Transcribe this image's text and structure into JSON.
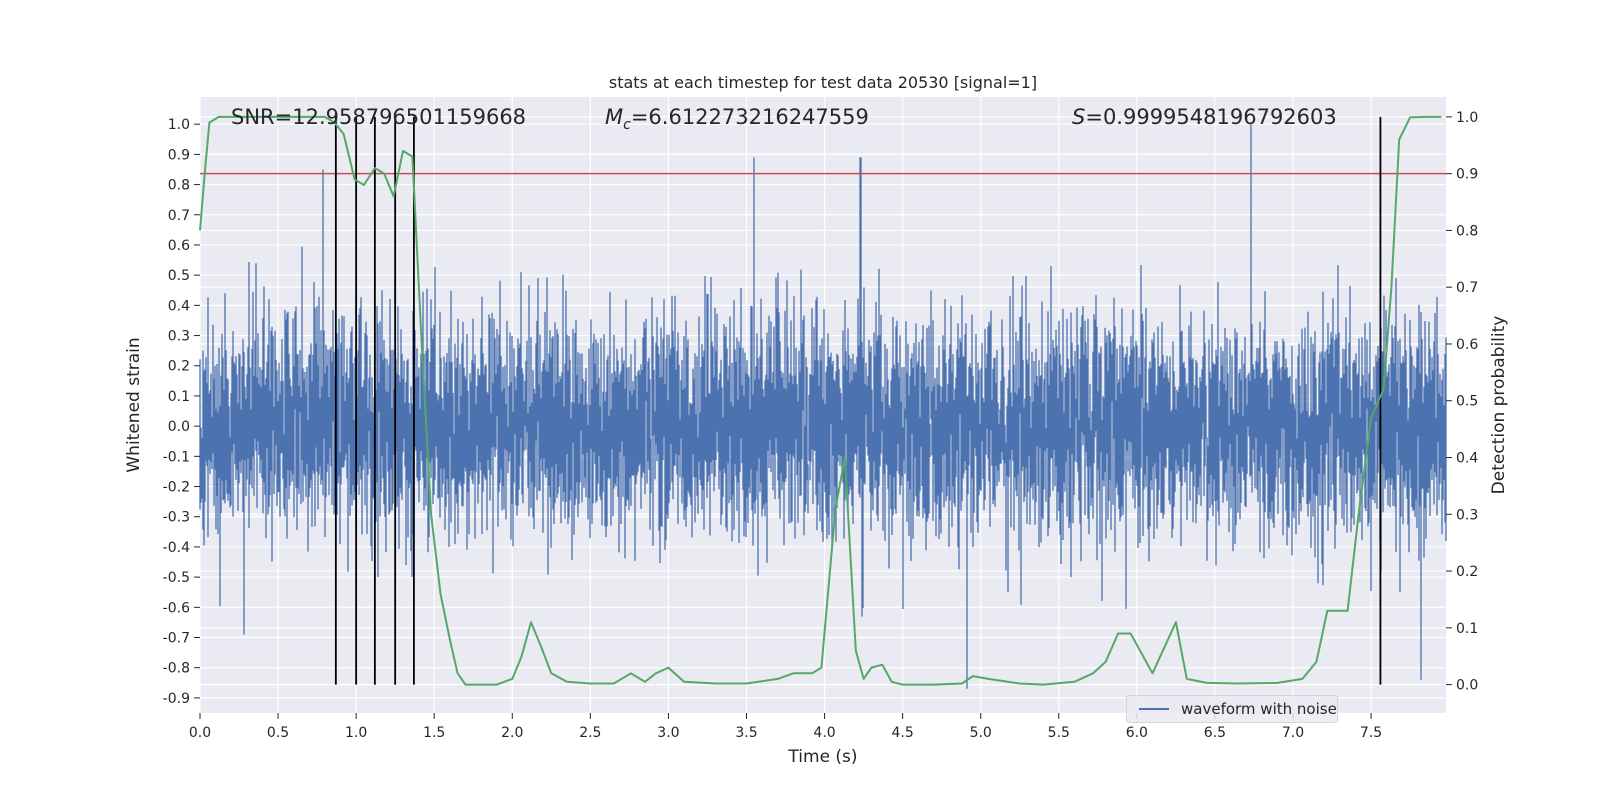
{
  "chart_data": {
    "type": "line",
    "title": "stats at each timestep for test data 20530 [signal=1]",
    "xlabel": "Time (s)",
    "ylabel_left": "Whitened strain",
    "ylabel_right": "Detection probability",
    "xlim": [
      0.0,
      7.98
    ],
    "ylim_left": [
      -0.95,
      1.09
    ],
    "ylim_right": [
      -0.05,
      1.035
    ],
    "x_ticks": [
      "0.0",
      "0.5",
      "1.0",
      "1.5",
      "2.0",
      "2.5",
      "3.0",
      "3.5",
      "4.0",
      "4.5",
      "5.0",
      "5.5",
      "6.0",
      "6.5",
      "7.0",
      "7.5"
    ],
    "x_tick_values": [
      0.0,
      0.5,
      1.0,
      1.5,
      2.0,
      2.5,
      3.0,
      3.5,
      4.0,
      4.5,
      5.0,
      5.5,
      6.0,
      6.5,
      7.0,
      7.5
    ],
    "y_ticks_left": [
      "1.0",
      "0.9",
      "0.8",
      "0.7",
      "0.6",
      "0.5",
      "0.4",
      "0.3",
      "0.2",
      "0.1",
      "0.0",
      "-0.1",
      "-0.2",
      "-0.3",
      "-0.4",
      "-0.5",
      "-0.6",
      "-0.7",
      "-0.8",
      "-0.9"
    ],
    "y_tick_values_left": [
      1.0,
      0.9,
      0.8,
      0.7,
      0.6,
      0.5,
      0.4,
      0.3,
      0.2,
      0.1,
      0.0,
      -0.1,
      -0.2,
      -0.3,
      -0.4,
      -0.5,
      -0.6,
      -0.7,
      -0.8,
      -0.9
    ],
    "y_ticks_right": [
      "1.0",
      "0.9",
      "0.8",
      "0.7",
      "0.6",
      "0.5",
      "0.4",
      "0.3",
      "0.2",
      "0.1",
      "0.0"
    ],
    "y_tick_values_right": [
      1.0,
      0.9,
      0.8,
      0.7,
      0.6,
      0.5,
      0.4,
      0.3,
      0.2,
      0.1,
      0.0
    ],
    "annotations": {
      "snr": "SNR=12.958796501159668",
      "mc_symbol": "M",
      "mc_subscript": "c",
      "mc_value": "=6.612273216247559",
      "s_symbol": "S",
      "s_value": "=0.9999548196792603"
    },
    "waveform": {
      "name": "waveform with noise",
      "color": "#4c72b0",
      "t_start": 0.0,
      "t_end": 7.98,
      "noise_rms": 0.17,
      "notable_peaks": [
        {
          "t": 0.79,
          "v": 0.85
        },
        {
          "t": 3.55,
          "v": 0.89
        },
        {
          "t": 4.23,
          "v": 0.89
        },
        {
          "t": 6.73,
          "v": 1.0
        },
        {
          "t": 0.28,
          "v": -0.69
        },
        {
          "t": 4.91,
          "v": -0.87
        },
        {
          "t": 7.82,
          "v": -0.84
        }
      ]
    },
    "threshold": {
      "value": 0.9,
      "axis": "right",
      "color": "#c44e52"
    },
    "probability": {
      "name": "detection probability",
      "color": "#55a868",
      "t": [
        0.0,
        0.03,
        0.06,
        0.12,
        0.2,
        0.4,
        0.6,
        0.8,
        0.86,
        0.92,
        0.99,
        1.05,
        1.12,
        1.18,
        1.24,
        1.3,
        1.36,
        1.42,
        1.48,
        1.54,
        1.6,
        1.65,
        1.7,
        1.8,
        1.9,
        2.0,
        2.06,
        2.12,
        2.18,
        2.25,
        2.35,
        2.5,
        2.65,
        2.76,
        2.85,
        2.92,
        3.0,
        3.1,
        3.3,
        3.5,
        3.7,
        3.8,
        3.92,
        3.98,
        4.07,
        4.13,
        4.2,
        4.25,
        4.3,
        4.37,
        4.43,
        4.5,
        4.7,
        4.88,
        4.95,
        5.05,
        5.25,
        5.4,
        5.6,
        5.72,
        5.8,
        5.88,
        5.96,
        6.04,
        6.1,
        6.25,
        6.32,
        6.45,
        6.65,
        6.9,
        7.06,
        7.15,
        7.22,
        7.35,
        7.42,
        7.5,
        7.58,
        7.63,
        7.68,
        7.75,
        7.85,
        7.95
      ],
      "p": [
        0.8,
        0.9,
        0.99,
        1.0,
        1.0,
        1.0,
        1.0,
        1.0,
        0.99,
        0.97,
        0.89,
        0.88,
        0.91,
        0.9,
        0.86,
        0.94,
        0.93,
        0.6,
        0.3,
        0.16,
        0.08,
        0.02,
        0.0,
        0.0,
        0.0,
        0.01,
        0.05,
        0.11,
        0.07,
        0.02,
        0.005,
        0.002,
        0.002,
        0.02,
        0.005,
        0.02,
        0.03,
        0.005,
        0.002,
        0.002,
        0.01,
        0.02,
        0.02,
        0.03,
        0.31,
        0.4,
        0.06,
        0.01,
        0.03,
        0.035,
        0.005,
        0.0,
        0.0,
        0.002,
        0.015,
        0.01,
        0.002,
        0.0,
        0.005,
        0.02,
        0.04,
        0.09,
        0.09,
        0.05,
        0.02,
        0.11,
        0.01,
        0.003,
        0.002,
        0.003,
        0.01,
        0.04,
        0.13,
        0.13,
        0.3,
        0.47,
        0.52,
        0.7,
        0.96,
        0.999,
        1.0,
        1.0
      ]
    },
    "vertical_lines": [
      0.87,
      1.0,
      1.12,
      1.25,
      1.37,
      7.56
    ],
    "legend": {
      "label": "waveform with noise",
      "position": "lower-right"
    },
    "grid": true,
    "colors": {
      "axes_bg": "#eaeaf2",
      "grid": "#ffffff",
      "vline": "#000000"
    }
  }
}
